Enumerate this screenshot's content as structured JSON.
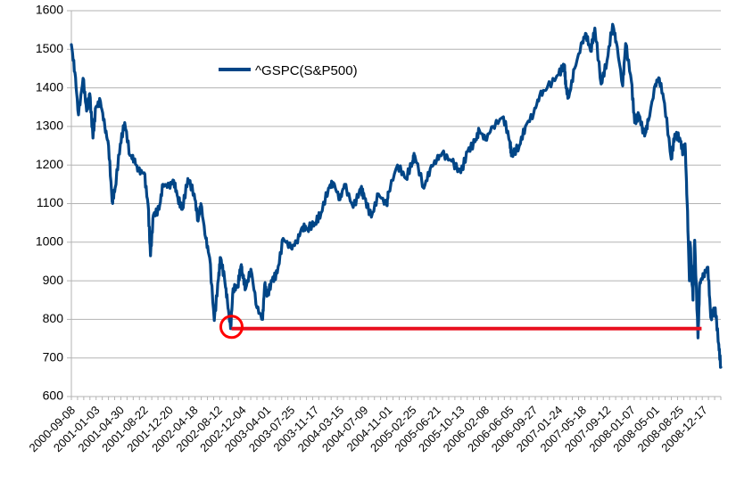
{
  "chart_data": {
    "type": "line",
    "ylim": [
      600,
      1600
    ],
    "yticks": [
      600,
      700,
      800,
      900,
      1000,
      1100,
      1200,
      1300,
      1400,
      1500,
      1600
    ],
    "grid": "horizontal",
    "legend_placement": "top-left",
    "xtick_labels": [
      "2000-09-08",
      "2001-01-03",
      "2001-04-30",
      "2001-08-22",
      "2001-12-20",
      "2002-04-18",
      "2002-08-12",
      "2002-12-04",
      "2003-04-01",
      "2003-07-25",
      "2003-11-17",
      "2004-03-15",
      "2004-07-09",
      "2004-11-01",
      "2005-02-25",
      "2005-06-21",
      "2005-10-13",
      "2006-02-08",
      "2006-06-05",
      "2006-09-27",
      "2007-01-24",
      "2007-05-18",
      "2007-09-12",
      "2008-01-07",
      "2008-05-01",
      "2008-08-25",
      "2008-12-17"
    ],
    "series": [
      {
        "name": "^GSPC(S&P500)",
        "color": "#004586",
        "points": [
          [
            "2000-09-08",
            1512
          ],
          [
            "2000-09-25",
            1440
          ],
          [
            "2000-10-12",
            1330
          ],
          [
            "2000-11-03",
            1425
          ],
          [
            "2000-11-20",
            1340
          ],
          [
            "2000-12-05",
            1385
          ],
          [
            "2000-12-20",
            1270
          ],
          [
            "2001-01-03",
            1350
          ],
          [
            "2001-01-25",
            1365
          ],
          [
            "2001-02-15",
            1300
          ],
          [
            "2001-03-05",
            1250
          ],
          [
            "2001-03-22",
            1105
          ],
          [
            "2001-04-05",
            1140
          ],
          [
            "2001-04-30",
            1255
          ],
          [
            "2001-05-21",
            1310
          ],
          [
            "2001-06-15",
            1225
          ],
          [
            "2001-07-05",
            1215
          ],
          [
            "2001-07-25",
            1185
          ],
          [
            "2001-08-22",
            1180
          ],
          [
            "2001-09-10",
            1095
          ],
          [
            "2001-09-21",
            965
          ],
          [
            "2001-10-05",
            1070
          ],
          [
            "2001-11-01",
            1085
          ],
          [
            "2001-11-20",
            1150
          ],
          [
            "2001-12-20",
            1145
          ],
          [
            "2002-01-10",
            1160
          ],
          [
            "2002-01-30",
            1115
          ],
          [
            "2002-02-20",
            1085
          ],
          [
            "2002-03-19",
            1165
          ],
          [
            "2002-04-18",
            1125
          ],
          [
            "2002-05-07",
            1055
          ],
          [
            "2002-05-20",
            1100
          ],
          [
            "2002-06-12",
            1010
          ],
          [
            "2002-07-01",
            960
          ],
          [
            "2002-07-23",
            797
          ],
          [
            "2002-08-12",
            905
          ],
          [
            "2002-08-22",
            960
          ],
          [
            "2002-09-10",
            905
          ],
          [
            "2002-09-24",
            845
          ],
          [
            "2002-10-09",
            776
          ],
          [
            "2002-10-21",
            880
          ],
          [
            "2002-11-12",
            885
          ],
          [
            "2002-11-27",
            938
          ],
          [
            "2002-12-04",
            920
          ],
          [
            "2002-12-20",
            880
          ],
          [
            "2003-01-14",
            930
          ],
          [
            "2003-02-12",
            830
          ],
          [
            "2003-03-11",
            800
          ],
          [
            "2003-03-21",
            890
          ],
          [
            "2003-04-01",
            860
          ],
          [
            "2003-04-25",
            900
          ],
          [
            "2003-05-20",
            920
          ],
          [
            "2003-06-17",
            1010
          ],
          [
            "2003-07-25",
            985
          ],
          [
            "2003-08-20",
            1000
          ],
          [
            "2003-09-18",
            1040
          ],
          [
            "2003-10-10",
            1035
          ],
          [
            "2003-11-17",
            1050
          ],
          [
            "2003-12-15",
            1075
          ],
          [
            "2004-01-20",
            1140
          ],
          [
            "2004-02-11",
            1155
          ],
          [
            "2004-03-15",
            1110
          ],
          [
            "2004-04-05",
            1150
          ],
          [
            "2004-05-17",
            1090
          ],
          [
            "2004-06-23",
            1140
          ],
          [
            "2004-07-09",
            1115
          ],
          [
            "2004-08-12",
            1065
          ],
          [
            "2004-09-15",
            1125
          ],
          [
            "2004-10-25",
            1095
          ],
          [
            "2004-11-01",
            1130
          ],
          [
            "2004-12-15",
            1200
          ],
          [
            "2005-01-24",
            1165
          ],
          [
            "2005-02-25",
            1210
          ],
          [
            "2005-03-07",
            1225
          ],
          [
            "2005-04-20",
            1140
          ],
          [
            "2005-05-20",
            1190
          ],
          [
            "2005-06-21",
            1215
          ],
          [
            "2005-07-15",
            1230
          ],
          [
            "2005-08-30",
            1210
          ],
          [
            "2005-10-13",
            1180
          ],
          [
            "2005-11-15",
            1235
          ],
          [
            "2005-12-20",
            1260
          ],
          [
            "2006-01-10",
            1290
          ],
          [
            "2006-02-08",
            1265
          ],
          [
            "2006-03-15",
            1300
          ],
          [
            "2006-05-05",
            1325
          ],
          [
            "2006-06-05",
            1260
          ],
          [
            "2006-06-13",
            1225
          ],
          [
            "2006-07-20",
            1250
          ],
          [
            "2006-08-18",
            1300
          ],
          [
            "2006-09-27",
            1335
          ],
          [
            "2006-10-25",
            1380
          ],
          [
            "2006-11-30",
            1400
          ],
          [
            "2007-01-24",
            1435
          ],
          [
            "2007-02-20",
            1460
          ],
          [
            "2007-02-28",
            1400
          ],
          [
            "2007-03-13",
            1375
          ],
          [
            "2007-04-10",
            1450
          ],
          [
            "2007-05-18",
            1520
          ],
          [
            "2007-06-04",
            1540
          ],
          [
            "2007-06-26",
            1495
          ],
          [
            "2007-07-16",
            1555
          ],
          [
            "2007-08-15",
            1410
          ],
          [
            "2007-09-12",
            1470
          ],
          [
            "2007-10-09",
            1565
          ],
          [
            "2007-10-26",
            1520
          ],
          [
            "2007-11-26",
            1405
          ],
          [
            "2007-12-10",
            1515
          ],
          [
            "2008-01-07",
            1415
          ],
          [
            "2008-01-22",
            1310
          ],
          [
            "2008-02-11",
            1330
          ],
          [
            "2008-03-10",
            1275
          ],
          [
            "2008-03-28",
            1315
          ],
          [
            "2008-05-01",
            1410
          ],
          [
            "2008-05-19",
            1425
          ],
          [
            "2008-06-13",
            1360
          ],
          [
            "2008-07-15",
            1215
          ],
          [
            "2008-08-01",
            1280
          ],
          [
            "2008-08-25",
            1270
          ],
          [
            "2008-09-10",
            1230
          ],
          [
            "2008-09-19",
            1255
          ],
          [
            "2008-09-29",
            1105
          ],
          [
            "2008-10-10",
            900
          ],
          [
            "2008-10-13",
            1000
          ],
          [
            "2008-10-27",
            850
          ],
          [
            "2008-11-04",
            1005
          ],
          [
            "2008-11-20",
            752
          ],
          [
            "2008-11-28",
            895
          ],
          [
            "2008-12-17",
            915
          ],
          [
            "2009-01-06",
            935
          ],
          [
            "2009-01-20",
            805
          ],
          [
            "2009-02-10",
            830
          ],
          [
            "2009-02-27",
            735
          ],
          [
            "2009-03-09",
            676
          ]
        ]
      }
    ],
    "annotations": {
      "circle_color": "#ff0000",
      "line_color": "#e8101f",
      "line_level": 776,
      "circle_date": "2002-10-09",
      "line_end_date": "2008-11-20"
    }
  }
}
